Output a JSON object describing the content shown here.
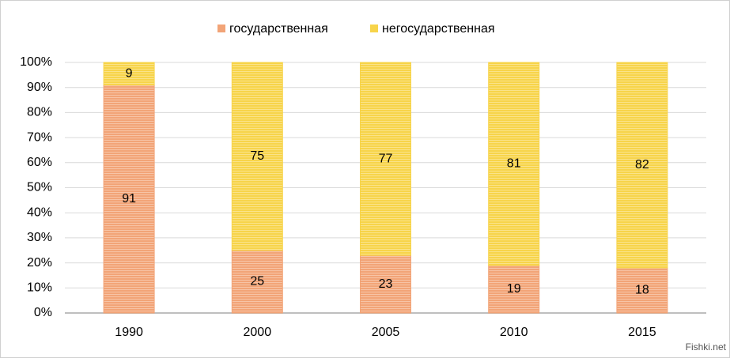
{
  "chart_data": {
    "type": "stacked_bar",
    "categories": [
      "1990",
      "2000",
      "2005",
      "2010",
      "2015"
    ],
    "series": [
      {
        "name": "государственная",
        "color": "#f2a477",
        "values": [
          91,
          25,
          23,
          19,
          18
        ]
      },
      {
        "name": "негосударственная",
        "color": "#f7d44a",
        "values": [
          9,
          75,
          77,
          81,
          82
        ]
      }
    ],
    "ylim": [
      0,
      100
    ],
    "yticks": [
      {
        "value": 0,
        "label": "0%"
      },
      {
        "value": 10,
        "label": "10%"
      },
      {
        "value": 20,
        "label": "20%"
      },
      {
        "value": 30,
        "label": "30%"
      },
      {
        "value": 40,
        "label": "40%"
      },
      {
        "value": 50,
        "label": "50%"
      },
      {
        "value": 60,
        "label": "60%"
      },
      {
        "value": 70,
        "label": "70%"
      },
      {
        "value": 80,
        "label": "80%"
      },
      {
        "value": 90,
        "label": "90%"
      },
      {
        "value": 100,
        "label": "100%"
      }
    ],
    "grid": true,
    "legend": "top",
    "watermark": "Fishki.net"
  }
}
